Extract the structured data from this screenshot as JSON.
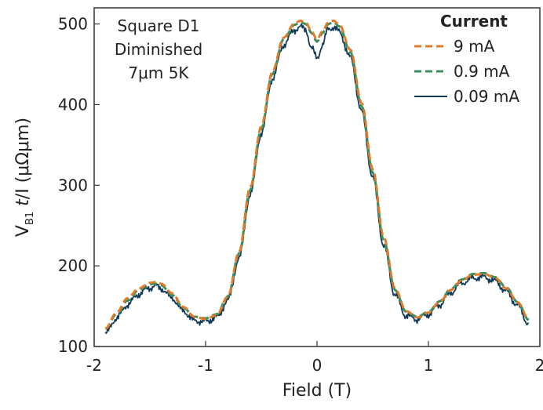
{
  "chart_data": {
    "type": "line",
    "title": "",
    "xlabel": "Field (T)",
    "ylabel": {
      "main": "V",
      "sub": "B1",
      "italic": "t",
      "rest": "/I (μΩμm)"
    },
    "xlim": [
      -2,
      2
    ],
    "ylim": [
      100,
      520
    ],
    "xticks": [
      -2,
      -1,
      0,
      1,
      2
    ],
    "yticks": [
      100,
      200,
      300,
      400,
      500
    ],
    "grid": false,
    "annotation": [
      "Square D1",
      "Diminished",
      "7μm 5K"
    ],
    "legend": {
      "title": "Current",
      "placement": "top-right"
    },
    "series": [
      {
        "name": "9 mA",
        "color": "#e07b2a",
        "style": "dashed",
        "x": [
          -1.9,
          -1.8,
          -1.7,
          -1.6,
          -1.5,
          -1.45,
          -1.4,
          -1.3,
          -1.2,
          -1.1,
          -1.0,
          -0.9,
          -0.8,
          -0.7,
          -0.6,
          -0.5,
          -0.4,
          -0.3,
          -0.2,
          -0.15,
          -0.1,
          -0.05,
          0.0,
          0.05,
          0.1,
          0.15,
          0.2,
          0.3,
          0.4,
          0.5,
          0.6,
          0.7,
          0.8,
          0.9,
          1.0,
          1.1,
          1.2,
          1.3,
          1.4,
          1.5,
          1.6,
          1.7,
          1.8,
          1.9
        ],
        "y": [
          122,
          142,
          160,
          172,
          179,
          180,
          178,
          166,
          149,
          137,
          134,
          139,
          162,
          217,
          297,
          373,
          441,
          483,
          501,
          504,
          502,
          491,
          481,
          491,
          502,
          504,
          499,
          468,
          402,
          320,
          235,
          172,
          144,
          136,
          142,
          155,
          170,
          182,
          189,
          190,
          185,
          172,
          155,
          134
        ]
      },
      {
        "name": "0.9 mA",
        "color": "#3a8f5c",
        "style": "dashed",
        "x": [
          -1.9,
          -1.8,
          -1.7,
          -1.6,
          -1.5,
          -1.45,
          -1.4,
          -1.3,
          -1.2,
          -1.1,
          -1.0,
          -0.9,
          -0.8,
          -0.7,
          -0.6,
          -0.5,
          -0.4,
          -0.3,
          -0.2,
          -0.15,
          -0.1,
          -0.05,
          0.0,
          0.05,
          0.1,
          0.15,
          0.2,
          0.3,
          0.4,
          0.5,
          0.6,
          0.7,
          0.8,
          0.9,
          1.0,
          1.1,
          1.2,
          1.3,
          1.4,
          1.5,
          1.6,
          1.7,
          1.8,
          1.9
        ],
        "y": [
          122,
          140,
          157,
          170,
          177,
          178,
          176,
          164,
          148,
          137,
          135,
          140,
          162,
          215,
          294,
          370,
          438,
          481,
          499,
          502,
          500,
          489,
          478,
          489,
          500,
          502,
          497,
          465,
          398,
          316,
          231,
          170,
          143,
          137,
          143,
          156,
          171,
          183,
          190,
          191,
          186,
          173,
          155,
          133
        ]
      },
      {
        "name": "0.09 mA",
        "color": "#123a5a",
        "style": "solid",
        "x": [
          -1.9,
          -1.8,
          -1.7,
          -1.6,
          -1.5,
          -1.45,
          -1.4,
          -1.3,
          -1.2,
          -1.1,
          -1.0,
          -0.9,
          -0.8,
          -0.7,
          -0.6,
          -0.5,
          -0.4,
          -0.3,
          -0.2,
          -0.15,
          -0.1,
          -0.05,
          0.0,
          0.05,
          0.1,
          0.15,
          0.2,
          0.3,
          0.4,
          0.5,
          0.6,
          0.7,
          0.8,
          0.9,
          1.0,
          1.1,
          1.2,
          1.3,
          1.4,
          1.5,
          1.6,
          1.7,
          1.8,
          1.9
        ],
        "y": [
          116,
          135,
          152,
          165,
          173,
          175,
          172,
          160,
          144,
          132,
          131,
          136,
          157,
          209,
          288,
          364,
          432,
          474,
          493,
          496,
          493,
          470,
          458,
          474,
          494,
          496,
          490,
          458,
          391,
          309,
          224,
          164,
          138,
          134,
          140,
          152,
          167,
          179,
          185,
          186,
          181,
          168,
          151,
          128
        ]
      }
    ]
  }
}
